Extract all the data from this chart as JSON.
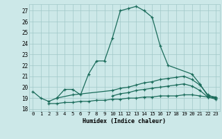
{
  "xlabel": "Humidex (Indice chaleur)",
  "ylabel": "",
  "xlim": [
    -0.5,
    23.5
  ],
  "ylim": [
    17.8,
    27.6
  ],
  "yticks": [
    18,
    19,
    20,
    21,
    22,
    23,
    24,
    25,
    26,
    27
  ],
  "xticks": [
    0,
    1,
    2,
    3,
    4,
    5,
    6,
    7,
    8,
    9,
    10,
    11,
    12,
    13,
    14,
    15,
    16,
    17,
    18,
    19,
    20,
    21,
    22,
    23
  ],
  "bg_color": "#cce8e8",
  "line_color": "#1a6b5a",
  "grid_color": "#a0c8c8",
  "lines": [
    {
      "x": [
        0,
        1,
        2,
        3,
        4,
        5,
        6,
        7,
        8,
        9,
        10,
        11,
        12,
        13,
        14,
        15,
        16,
        17,
        20,
        21,
        22,
        23
      ],
      "y": [
        19.6,
        19.0,
        18.7,
        19.0,
        19.8,
        19.8,
        19.3,
        21.2,
        22.4,
        22.4,
        24.5,
        27.0,
        27.2,
        27.4,
        27.0,
        26.4,
        23.8,
        22.0,
        21.2,
        20.3,
        19.2,
        19.1
      ]
    },
    {
      "x": [
        3,
        5,
        10,
        11,
        12,
        13,
        14,
        15,
        16,
        17,
        18,
        19,
        20,
        21,
        22,
        23
      ],
      "y": [
        19.0,
        19.3,
        19.7,
        19.9,
        20.0,
        20.2,
        20.4,
        20.5,
        20.7,
        20.8,
        20.9,
        21.0,
        20.7,
        20.2,
        19.3,
        19.0
      ]
    },
    {
      "x": [
        10,
        11,
        12,
        13,
        14,
        15,
        16,
        17,
        18,
        19,
        20,
        21,
        22,
        23
      ],
      "y": [
        19.2,
        19.4,
        19.5,
        19.7,
        19.8,
        19.9,
        20.0,
        20.1,
        20.2,
        20.3,
        20.1,
        19.7,
        19.1,
        18.9
      ]
    },
    {
      "x": [
        2,
        3,
        4,
        5,
        6,
        7,
        8,
        9,
        10,
        11,
        12,
        13,
        14,
        15,
        16,
        17,
        18,
        19,
        20,
        21,
        22,
        23
      ],
      "y": [
        18.5,
        18.5,
        18.6,
        18.6,
        18.7,
        18.7,
        18.8,
        18.8,
        18.9,
        18.9,
        19.0,
        19.0,
        19.1,
        19.1,
        19.2,
        19.2,
        19.2,
        19.3,
        19.3,
        19.2,
        19.1,
        19.0
      ]
    }
  ]
}
